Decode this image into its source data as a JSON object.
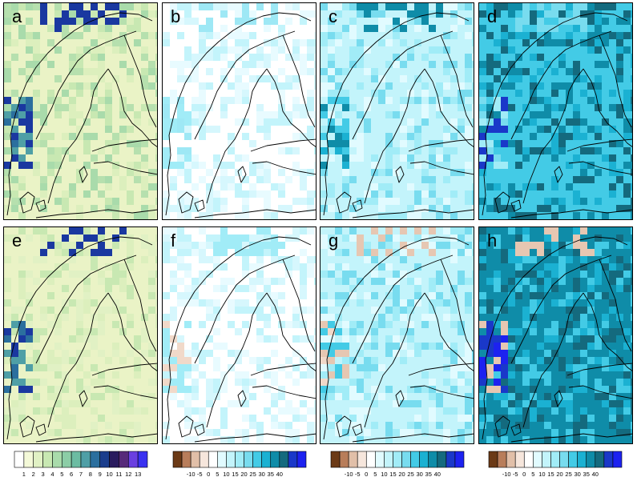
{
  "panels": [
    {
      "label": "a",
      "scale": "precip"
    },
    {
      "label": "b",
      "scale": "change"
    },
    {
      "label": "c",
      "scale": "change"
    },
    {
      "label": "d",
      "scale": "change"
    },
    {
      "label": "e",
      "scale": "precip"
    },
    {
      "label": "f",
      "scale": "change"
    },
    {
      "label": "g",
      "scale": "change"
    },
    {
      "label": "h",
      "scale": "change"
    }
  ],
  "legends": [
    {
      "id": "precip",
      "colors": [
        "#ffffff",
        "#f4f9d8",
        "#e1f1c4",
        "#c8e8b2",
        "#a9dbab",
        "#8ccda6",
        "#6cbca2",
        "#4f9fa6",
        "#2b6f9e",
        "#1a3d8c",
        "#2a1b5e",
        "#572a7a",
        "#6a3fe0",
        "#3a31f0"
      ],
      "labels": [
        "1",
        "2",
        "3",
        "4",
        "5",
        "6",
        "7",
        "8",
        "9",
        "10",
        "11",
        "12",
        "13"
      ]
    },
    {
      "id": "change",
      "colors": [
        "#6b3a16",
        "#b87d5a",
        "#e1bfa8",
        "#f6e6dc",
        "#ffffff",
        "#e1fbff",
        "#c3f4fb",
        "#a1ecf7",
        "#78dcef",
        "#43cbe6",
        "#1bb1d2",
        "#0f8ca8",
        "#146a7e",
        "#1a38c9",
        "#1d22f0"
      ],
      "labels": [
        "-10",
        "-5",
        "0",
        "5",
        "10",
        "15",
        "20",
        "25",
        "30",
        "35",
        "40"
      ]
    }
  ]
}
